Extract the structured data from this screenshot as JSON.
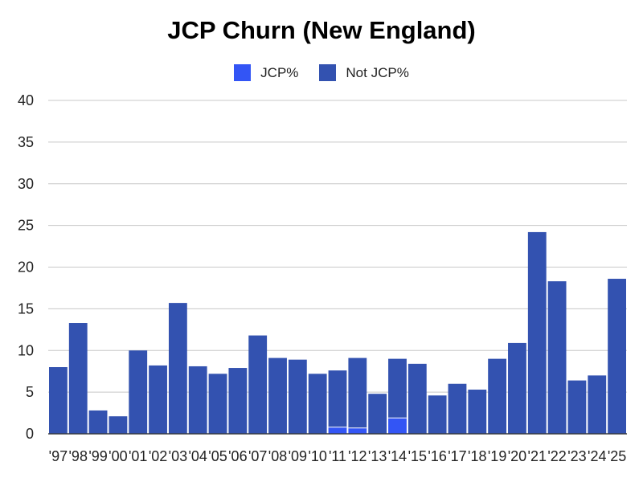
{
  "chart_data": {
    "type": "bar",
    "stacked": true,
    "title": "JCP Churn (New England)",
    "xlabel": "",
    "ylabel": "",
    "ylim": [
      0,
      40
    ],
    "yticks": [
      0,
      5,
      10,
      15,
      20,
      25,
      30,
      35,
      40
    ],
    "grid": true,
    "legend_position": "top-center",
    "categories": [
      "'97",
      "'98",
      "'99",
      "'00",
      "'01",
      "'02",
      "'03",
      "'04",
      "'05",
      "'06",
      "'07",
      "'08",
      "'09",
      "'10",
      "'11",
      "'12",
      "'13",
      "'14",
      "'15",
      "'16",
      "'17",
      "'18",
      "'19",
      "'20",
      "'21",
      "'22",
      "'23",
      "'24",
      "'25"
    ],
    "series": [
      {
        "name": "JCP%",
        "color": "#3355f5",
        "values": [
          0,
          0,
          0,
          0,
          0,
          0,
          0,
          0,
          0,
          0,
          0,
          0,
          0,
          0,
          0.8,
          0.7,
          0,
          1.9,
          0,
          0,
          0,
          0,
          0,
          0,
          0,
          0,
          0,
          0,
          0
        ]
      },
      {
        "name": "Not JCP%",
        "color": "#3352b0",
        "values": [
          8.0,
          13.3,
          2.8,
          2.1,
          10.0,
          8.2,
          15.7,
          8.1,
          7.2,
          7.9,
          11.8,
          9.1,
          8.9,
          7.2,
          6.8,
          8.4,
          4.8,
          7.1,
          8.4,
          4.6,
          6.0,
          5.3,
          9.0,
          10.9,
          24.2,
          18.3,
          6.4,
          7.0,
          18.6
        ]
      }
    ]
  }
}
